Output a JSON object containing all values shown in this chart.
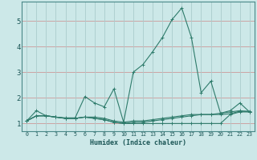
{
  "xlabel": "Humidex (Indice chaleur)",
  "bg_color": "#cce8e8",
  "grid_color_h": "#cc9999",
  "grid_color_v": "#aacccc",
  "line_color": "#2e7b6b",
  "xlim": [
    -0.5,
    23.5
  ],
  "ylim": [
    0.7,
    5.75
  ],
  "xticks": [
    0,
    1,
    2,
    3,
    4,
    5,
    6,
    7,
    8,
    9,
    10,
    11,
    12,
    13,
    14,
    15,
    16,
    17,
    18,
    19,
    20,
    21,
    22,
    23
  ],
  "yticks": [
    1,
    2,
    3,
    4,
    5
  ],
  "series": [
    [
      1.1,
      1.5,
      1.3,
      1.25,
      1.22,
      1.22,
      2.05,
      1.8,
      1.65,
      2.35,
      1.05,
      3.0,
      3.3,
      3.8,
      4.35,
      5.05,
      5.5,
      4.35,
      2.2,
      2.65,
      1.4,
      1.5,
      1.8,
      1.45
    ],
    [
      1.1,
      1.3,
      1.3,
      1.25,
      1.2,
      1.2,
      1.25,
      1.25,
      1.2,
      1.1,
      1.05,
      1.1,
      1.1,
      1.15,
      1.2,
      1.25,
      1.3,
      1.35,
      1.35,
      1.35,
      1.35,
      1.38,
      1.48,
      1.48
    ],
    [
      1.1,
      1.3,
      1.3,
      1.25,
      1.2,
      1.2,
      1.25,
      1.2,
      1.15,
      1.05,
      1.0,
      1.0,
      1.0,
      1.0,
      1.0,
      1.0,
      1.0,
      1.0,
      1.0,
      1.0,
      1.0,
      1.35,
      1.45,
      1.45
    ],
    [
      1.1,
      1.3,
      1.3,
      1.25,
      1.2,
      1.2,
      1.25,
      1.2,
      1.15,
      1.05,
      1.0,
      1.05,
      1.05,
      1.1,
      1.15,
      1.2,
      1.25,
      1.3,
      1.35,
      1.35,
      1.4,
      1.45,
      1.5,
      1.45
    ]
  ]
}
